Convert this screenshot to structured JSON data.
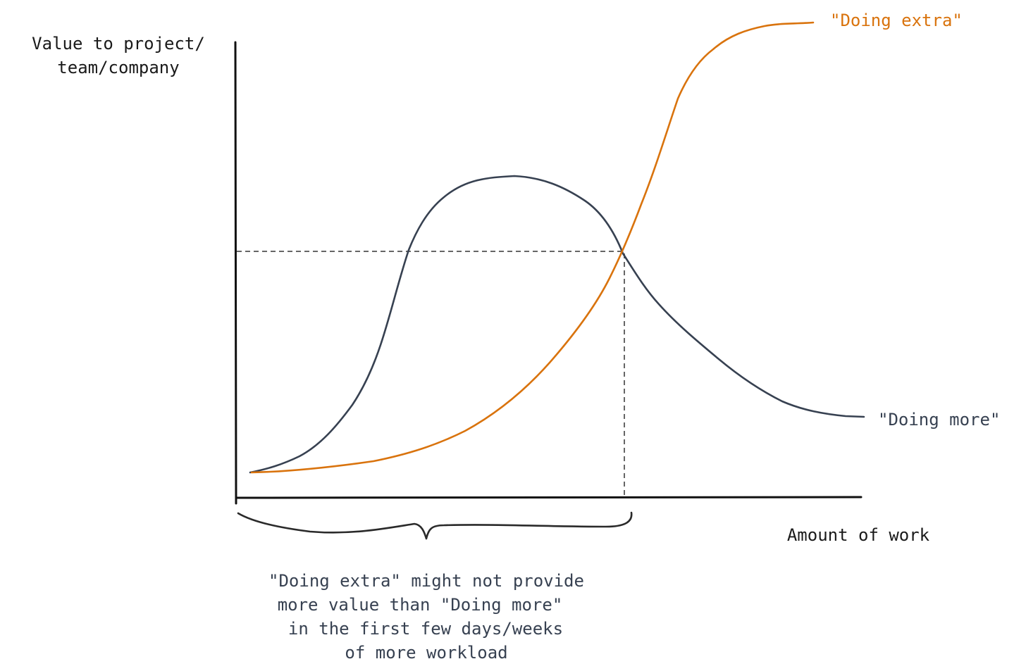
{
  "ylabel": [
    "Value to project/",
    "team/company"
  ],
  "xlabel": "Amount of work",
  "colors": {
    "axis": "#111111",
    "doing_more": "#374151",
    "doing_extra": "#d9730d",
    "guide": "#333333"
  },
  "series": {
    "doing_extra": {
      "label": "\"Doing extra\""
    },
    "doing_more": {
      "label": "\"Doing more\""
    }
  },
  "annotation": [
    "\"Doing extra\" might not provide",
    "more value than \"Doing more\"",
    "in the first few days/weeks",
    "of more workload"
  ]
}
